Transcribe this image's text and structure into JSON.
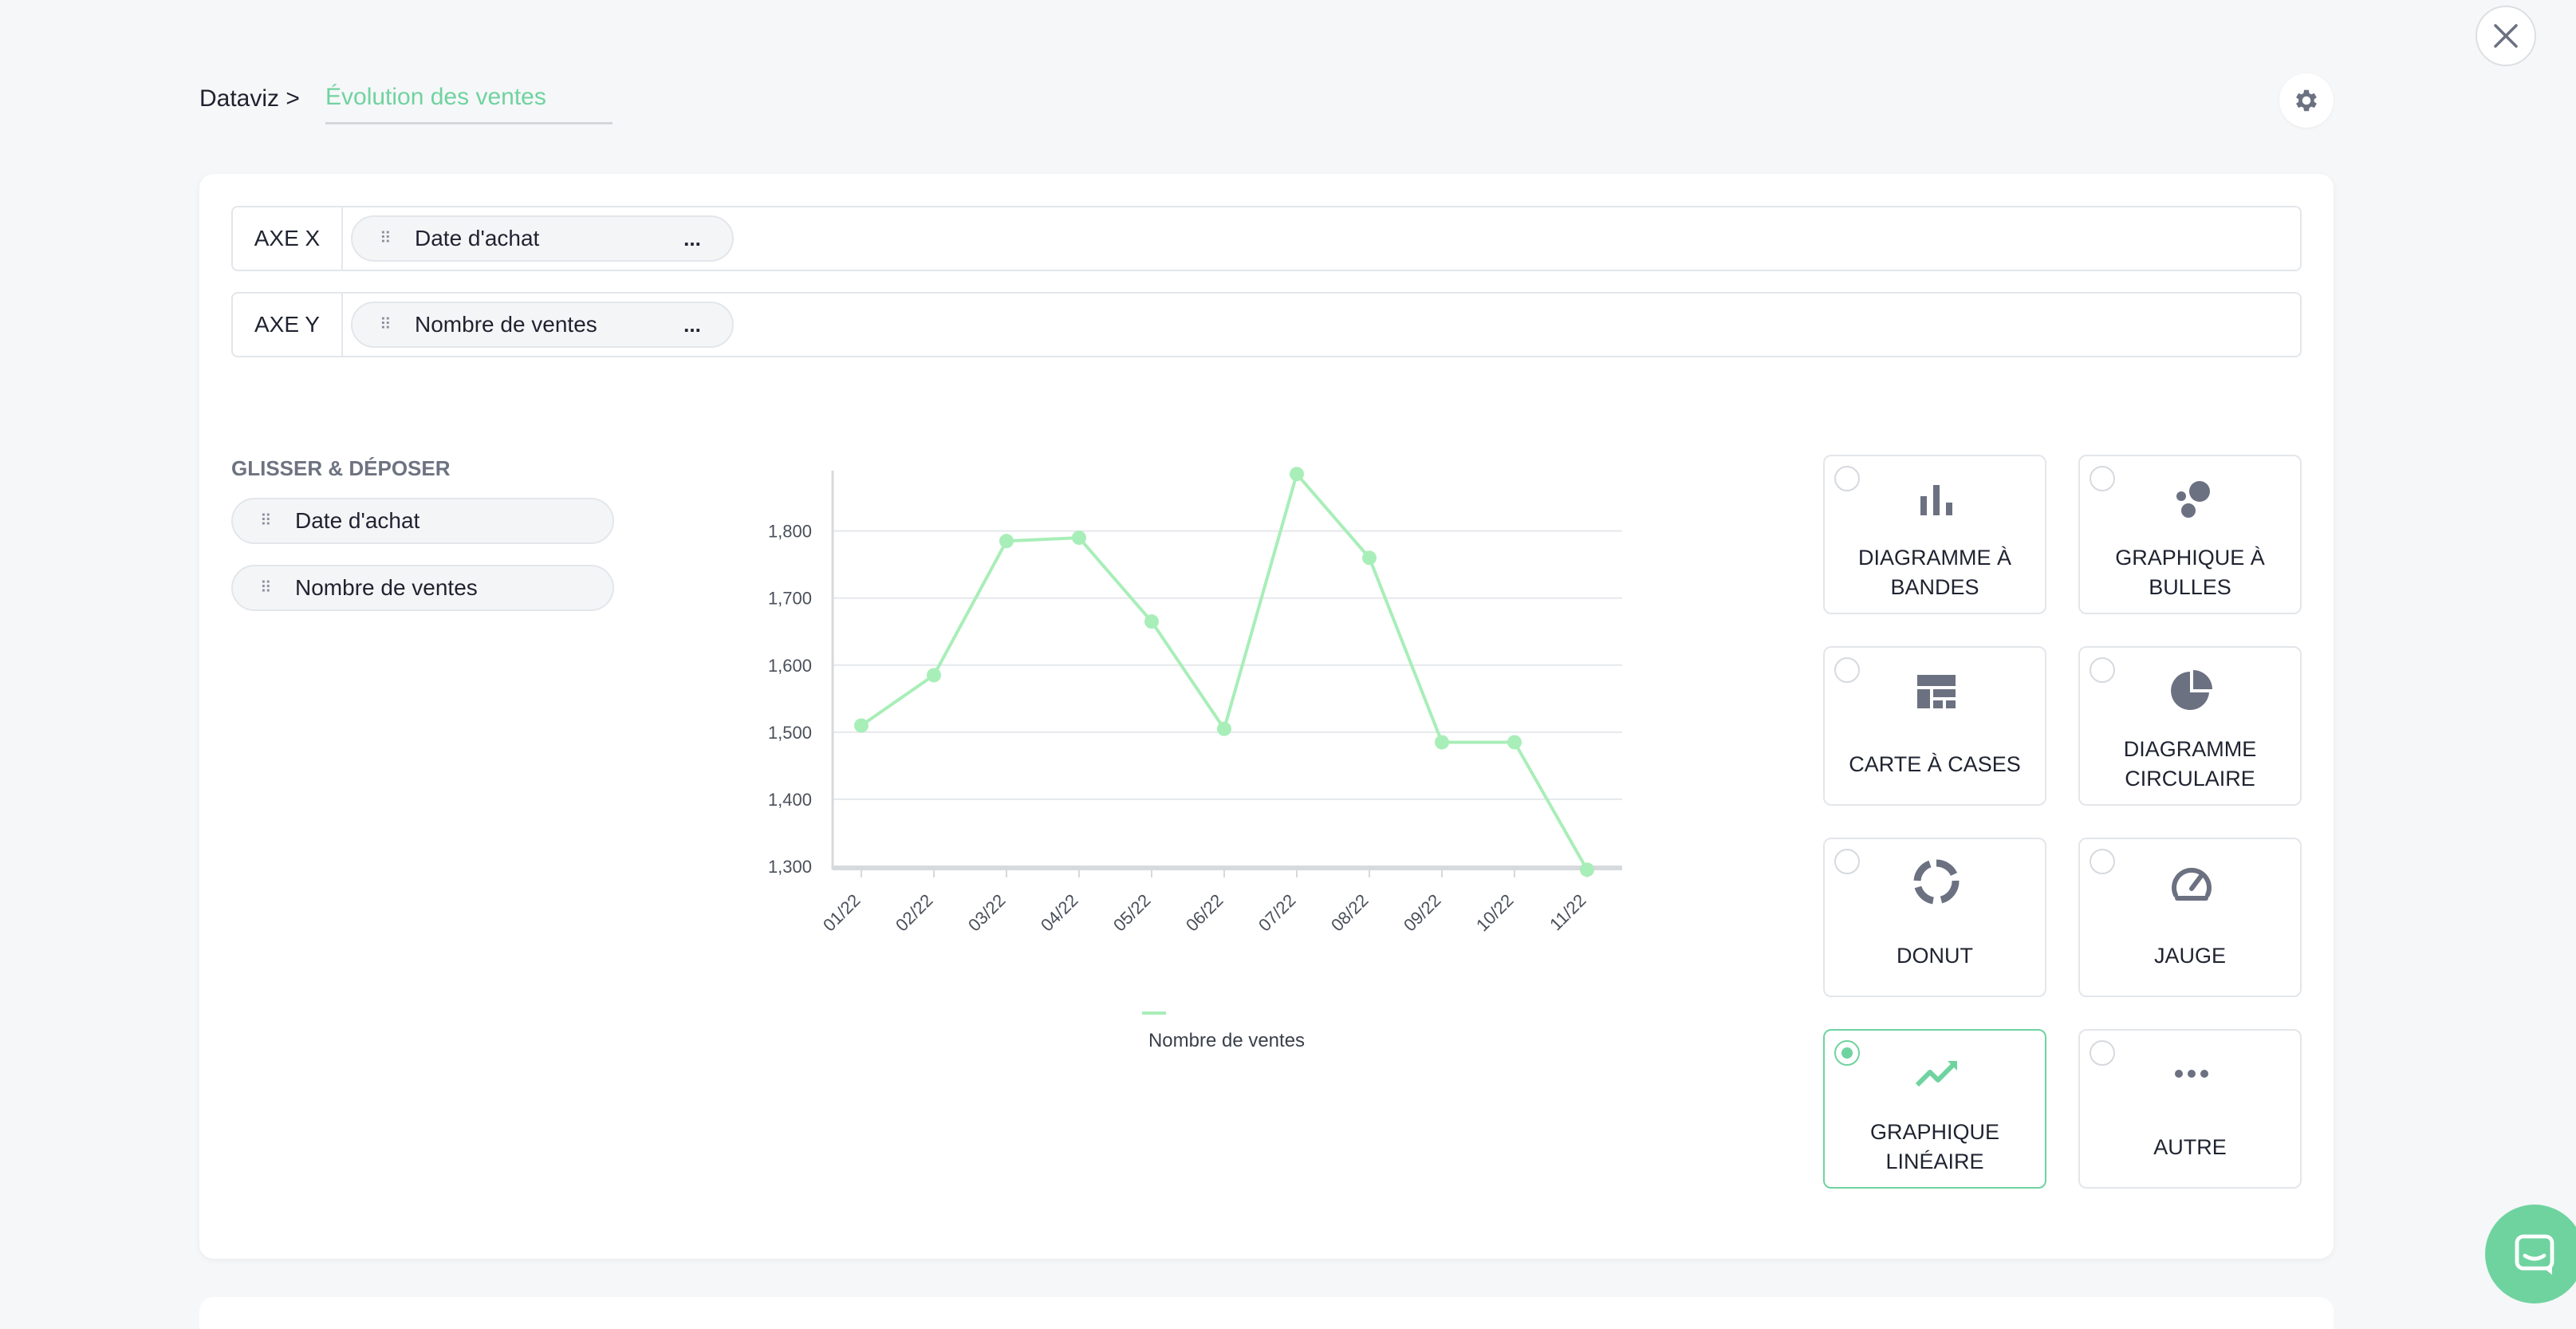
{
  "header": {
    "breadcrumb_root": "Dataviz >",
    "title": "Évolution des ventes"
  },
  "axes": {
    "x": {
      "label": "AXE X",
      "field": "Date d'achat",
      "more": "..."
    },
    "y": {
      "label": "AXE Y",
      "field": "Nombre de ventes",
      "more": "..."
    }
  },
  "drag_drop": {
    "title": "GLISSER & DÉPOSER",
    "fields": [
      "Date d'achat",
      "Nombre de ventes"
    ]
  },
  "chart_data": {
    "type": "line",
    "categories": [
      "01/22",
      "02/22",
      "03/22",
      "04/22",
      "05/22",
      "06/22",
      "07/22",
      "08/22",
      "09/22",
      "10/22",
      "11/22"
    ],
    "series": [
      {
        "name": "Nombre de ventes",
        "values": [
          1510,
          1585,
          1785,
          1790,
          1665,
          1505,
          1885,
          1760,
          1485,
          1485,
          1295
        ]
      }
    ],
    "yticks": [
      1300,
      1400,
      1500,
      1600,
      1700,
      1800
    ],
    "ytick_labels": [
      "1,300",
      "1,400",
      "1,500",
      "1,600",
      "1,700",
      "1,800"
    ],
    "ylim": [
      1300,
      1890
    ],
    "grid": true,
    "legend": "bottom",
    "color": "#a8eeb8"
  },
  "chart_types": [
    {
      "label": "DIAGRAMME À BANDES",
      "icon": "bar-chart-icon",
      "selected": false
    },
    {
      "label": "GRAPHIQUE À BULLES",
      "icon": "bubble-chart-icon",
      "selected": false
    },
    {
      "label": "CARTE À CASES",
      "icon": "treemap-icon",
      "selected": false
    },
    {
      "label": "DIAGRAMME CIRCULAIRE",
      "icon": "pie-chart-icon",
      "selected": false
    },
    {
      "label": "DONUT",
      "icon": "donut-chart-icon",
      "selected": false
    },
    {
      "label": "JAUGE",
      "icon": "gauge-icon",
      "selected": false
    },
    {
      "label": "GRAPHIQUE LINÉAIRE",
      "icon": "line-chart-icon",
      "selected": true
    },
    {
      "label": "AUTRE",
      "icon": "more-icon",
      "selected": false
    }
  ],
  "colors": {
    "accent": "#6fd3a0",
    "icon_gray": "#6b7180"
  }
}
